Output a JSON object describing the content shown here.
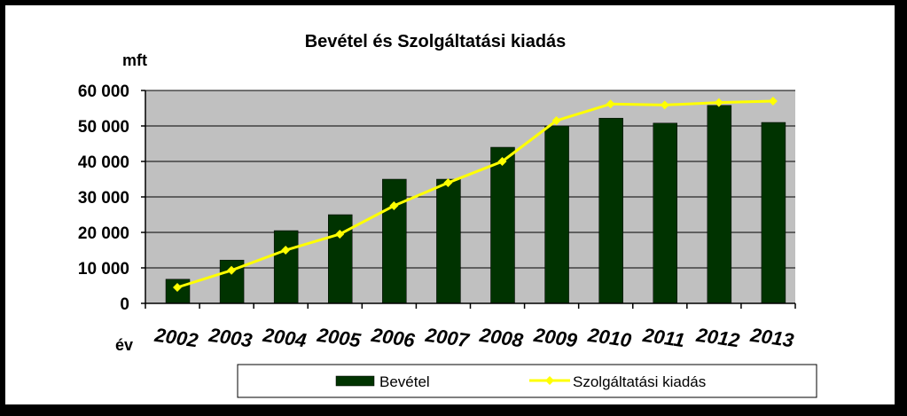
{
  "chart_data": {
    "type": "bar",
    "title": "Bevétel és Szolgáltatási kiadás",
    "ylabel": "mft",
    "xlabel": "év",
    "categories": [
      "2002",
      "2003",
      "2004",
      "2005",
      "2006",
      "2007",
      "2008",
      "2009",
      "2010",
      "2011",
      "2012",
      "2013"
    ],
    "ylim": [
      0,
      60000
    ],
    "yticks": [
      0,
      10000,
      20000,
      30000,
      40000,
      50000,
      60000
    ],
    "ytick_labels": [
      "0",
      "10 000",
      "20 000",
      "30 000",
      "40 000",
      "50 000",
      "60 000"
    ],
    "grid": true,
    "legend_position": "bottom",
    "series": [
      {
        "name": "Bevétel",
        "type": "bar",
        "color": "#003300",
        "values": [
          6800,
          12200,
          20500,
          25000,
          35000,
          35000,
          44000,
          50000,
          52200,
          50800,
          55800,
          51000
        ]
      },
      {
        "name": "Szolgáltatási kiadás",
        "type": "line",
        "color": "#FFFF00",
        "values": [
          4500,
          9300,
          15000,
          19500,
          27500,
          34000,
          40000,
          51500,
          56200,
          55900,
          56600,
          57000
        ]
      }
    ],
    "plot_background": "#C0C0C0"
  }
}
